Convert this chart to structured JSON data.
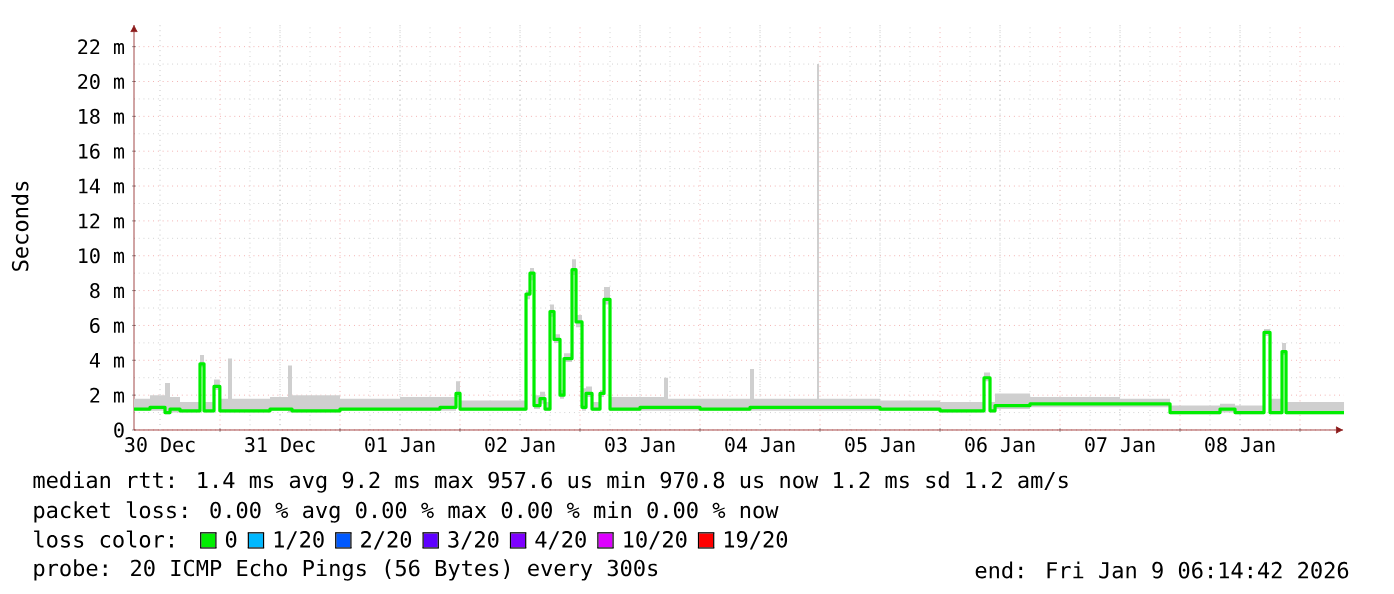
{
  "chart_data": {
    "type": "step",
    "ylabel": "Seconds",
    "legend_title": "loss color:",
    "legend": "bottom",
    "grid": true,
    "xlim": [
      "2025-12-30T06:48",
      "2026-01-09T08:48"
    ],
    "ylim": [
      0,
      23.3
    ],
    "xticks": [
      {
        "value": "2025-12-30T12:00",
        "label": "30 Dec"
      },
      {
        "value": "2025-12-31T00:00",
        "label": null
      },
      {
        "value": "2025-12-31T12:00",
        "label": "31 Dec"
      },
      {
        "value": "2026-01-01T00:00",
        "label": null
      },
      {
        "value": "2026-01-01T12:00",
        "label": "01 Jan"
      },
      {
        "value": "2026-01-02T00:00",
        "label": null
      },
      {
        "value": "2026-01-02T12:00",
        "label": "02 Jan"
      },
      {
        "value": "2026-01-03T00:00",
        "label": null
      },
      {
        "value": "2026-01-03T12:00",
        "label": "03 Jan"
      },
      {
        "value": "2026-01-04T00:00",
        "label": null
      },
      {
        "value": "2026-01-04T12:00",
        "label": "04 Jan"
      },
      {
        "value": "2026-01-05T00:00",
        "label": null
      },
      {
        "value": "2026-01-05T12:00",
        "label": "05 Jan"
      },
      {
        "value": "2026-01-06T00:00",
        "label": null
      },
      {
        "value": "2026-01-06T12:00",
        "label": "06 Jan"
      },
      {
        "value": "2026-01-07T00:00",
        "label": null
      },
      {
        "value": "2026-01-07T12:00",
        "label": "07 Jan"
      },
      {
        "value": "2026-01-08T00:00",
        "label": null
      },
      {
        "value": "2026-01-08T12:00",
        "label": "08 Jan"
      },
      {
        "value": "2026-01-09T00:00",
        "label": null
      }
    ],
    "yticks": [
      0,
      {
        "value": 2,
        "label": "2 m"
      },
      {
        "value": 4,
        "label": "4 m"
      },
      {
        "value": 6,
        "label": "6 m"
      },
      {
        "value": 8,
        "label": "8 m"
      },
      {
        "value": 10,
        "label": "10 m"
      },
      {
        "value": 12,
        "label": "12 m"
      },
      {
        "value": 14,
        "label": "14 m"
      },
      {
        "value": 16,
        "label": "16 m"
      },
      {
        "value": 18,
        "label": "18 m"
      },
      {
        "value": 20,
        "label": "20 m"
      },
      {
        "value": 22,
        "label": "22 m"
      }
    ],
    "x": [
      "2025-12-30T06:48",
      "2025-12-30T10:00",
      "2025-12-30T13:00",
      "2025-12-30T14:00",
      "2025-12-30T16:00",
      "2025-12-30T20:00",
      "2025-12-30T20:48",
      "2025-12-30T22:48",
      "2025-12-30T23:58",
      "2025-12-31T01:36",
      "2025-12-31T02:24",
      "2025-12-31T10:00",
      "2025-12-31T13:36",
      "2025-12-31T14:24",
      "2026-01-01T00:00",
      "2026-01-01T12:00",
      "2026-01-01T20:00",
      "2026-01-01T23:12",
      "2026-01-02T00:00",
      "2026-01-02T13:12",
      "2026-01-02T14:00",
      "2026-01-02T14:48",
      "2026-01-02T16:00",
      "2026-01-02T17:00",
      "2026-01-02T18:00",
      "2026-01-02T18:48",
      "2026-01-02T20:00",
      "2026-01-02T20:48",
      "2026-01-02T22:24",
      "2026-01-02T23:12",
      "2026-01-03T00:24",
      "2026-01-03T01:12",
      "2026-01-03T02:24",
      "2026-01-03T04:00",
      "2026-01-03T04:48",
      "2026-01-03T06:00",
      "2026-01-03T12:00",
      "2026-01-03T16:48",
      "2026-01-03T17:36",
      "2026-01-04T00:00",
      "2026-01-04T10:00",
      "2026-01-04T10:48",
      "2026-01-04T23:24",
      "2026-01-04T23:48",
      "2026-01-05T12:00",
      "2026-01-06T00:00",
      "2026-01-06T08:48",
      "2026-01-06T10:00",
      "2026-01-06T11:00",
      "2026-01-06T18:00",
      "2026-01-07T12:00",
      "2026-01-07T22:00",
      "2026-01-08T08:00",
      "2026-01-08T11:00",
      "2026-01-08T16:48",
      "2026-01-08T18:00",
      "2026-01-08T20:24",
      "2026-01-08T21:12",
      "2026-01-09T08:48"
    ],
    "series": [
      {
        "name": "0",
        "color": "#00ee00",
        "values": [
          1.2,
          1.3,
          1.0,
          1.2,
          1.1,
          3.8,
          1.1,
          2.5,
          1.1,
          1.1,
          1.1,
          1.2,
          1.2,
          1.1,
          1.2,
          1.2,
          1.3,
          2.1,
          1.2,
          7.8,
          9.0,
          1.4,
          1.8,
          1.2,
          6.8,
          5.2,
          2.0,
          4.1,
          9.2,
          6.2,
          1.3,
          2.1,
          1.2,
          2.1,
          7.5,
          1.2,
          1.3,
          1.3,
          1.3,
          1.2,
          1.3,
          1.3,
          1.3,
          1.3,
          1.2,
          1.1,
          3.0,
          1.1,
          1.4,
          1.5,
          1.5,
          1.0,
          1.2,
          1.0,
          5.6,
          1.0,
          4.5,
          1.0,
          1.0
        ],
        "lower": [
          1.1,
          1.1,
          0.9,
          1.0,
          1.0,
          3.6,
          1.0,
          2.3,
          1.0,
          1.0,
          1.0,
          1.1,
          1.0,
          1.0,
          1.1,
          1.1,
          1.1,
          1.9,
          1.1,
          7.5,
          8.6,
          1.2,
          1.5,
          1.1,
          6.5,
          5.0,
          1.8,
          3.9,
          8.9,
          5.9,
          1.1,
          1.9,
          1.1,
          1.9,
          7.2,
          1.1,
          1.1,
          1.1,
          1.1,
          1.1,
          1.1,
          1.1,
          1.1,
          1.1,
          1.1,
          1.0,
          2.8,
          1.0,
          1.2,
          1.3,
          1.3,
          0.9,
          1.0,
          0.9,
          5.4,
          0.9,
          4.3,
          0.9,
          0.9
        ],
        "upper": [
          1.8,
          2.0,
          2.7,
          1.9,
          1.6,
          4.3,
          1.6,
          2.9,
          1.8,
          4.1,
          1.8,
          1.9,
          3.7,
          2.0,
          1.8,
          1.9,
          1.9,
          2.8,
          1.7,
          8.0,
          9.3,
          2.0,
          2.2,
          1.6,
          7.2,
          5.5,
          2.3,
          4.4,
          9.8,
          6.6,
          2.4,
          2.5,
          1.6,
          2.3,
          8.2,
          1.9,
          1.9,
          3.0,
          1.8,
          1.8,
          3.5,
          1.8,
          21.0,
          1.8,
          1.7,
          1.6,
          3.3,
          1.6,
          2.1,
          1.9,
          1.8,
          1.4,
          1.5,
          1.4,
          5.8,
          1.8,
          5.0,
          1.6,
          1.6
        ]
      },
      {
        "name": "1/20",
        "color": "#00b8ff",
        "values": [
          null,
          null,
          null,
          null,
          null,
          null,
          null,
          null,
          null,
          null,
          null,
          null,
          null,
          null,
          null,
          null,
          null,
          null,
          null,
          null,
          null,
          null,
          null,
          null,
          null,
          null,
          null,
          null,
          null,
          null,
          null,
          null,
          null,
          null,
          null,
          null,
          null,
          null,
          null,
          null,
          null,
          null,
          null,
          null,
          null,
          null,
          null,
          null,
          null,
          null,
          null,
          null,
          null,
          null,
          null,
          null,
          null,
          null,
          null
        ]
      },
      {
        "name": "2/20",
        "color": "#0059ff",
        "values": [
          null,
          null,
          null,
          null,
          null,
          null,
          null,
          null,
          null,
          null,
          null,
          null,
          null,
          null,
          null,
          null,
          null,
          null,
          null,
          null,
          null,
          null,
          null,
          null,
          null,
          null,
          null,
          null,
          null,
          null,
          null,
          null,
          null,
          null,
          null,
          null,
          null,
          null,
          null,
          null,
          null,
          null,
          null,
          null,
          null,
          null,
          null,
          null,
          null,
          null,
          null,
          null,
          null,
          null,
          null,
          null,
          null,
          null,
          null
        ]
      },
      {
        "name": "3/20",
        "color": "#5e00ff",
        "values": [
          null,
          null,
          null,
          null,
          null,
          null,
          null,
          null,
          null,
          null,
          null,
          null,
          null,
          null,
          null,
          null,
          null,
          null,
          null,
          null,
          null,
          null,
          null,
          null,
          null,
          null,
          null,
          null,
          null,
          null,
          null,
          null,
          null,
          null,
          null,
          null,
          null,
          null,
          null,
          null,
          null,
          null,
          null,
          null,
          null,
          null,
          null,
          null,
          null,
          null,
          null,
          null,
          null,
          null,
          null,
          null,
          null,
          null,
          null
        ]
      },
      {
        "name": "4/20",
        "color": "#7e00ff",
        "values": [
          null,
          null,
          null,
          null,
          null,
          null,
          null,
          null,
          null,
          null,
          null,
          null,
          null,
          null,
          null,
          null,
          null,
          null,
          null,
          null,
          null,
          null,
          null,
          null,
          null,
          null,
          null,
          null,
          null,
          null,
          null,
          null,
          null,
          null,
          null,
          null,
          null,
          null,
          null,
          null,
          null,
          null,
          null,
          null,
          null,
          null,
          null,
          null,
          null,
          null,
          null,
          null,
          null,
          null,
          null,
          null,
          null,
          null,
          null
        ]
      },
      {
        "name": "10/20",
        "color": "#dd00ff",
        "values": [
          null,
          null,
          null,
          null,
          null,
          null,
          null,
          null,
          null,
          null,
          null,
          null,
          null,
          null,
          null,
          null,
          null,
          null,
          null,
          null,
          null,
          null,
          null,
          null,
          null,
          null,
          null,
          null,
          null,
          null,
          null,
          null,
          null,
          null,
          null,
          null,
          null,
          null,
          null,
          null,
          null,
          null,
          null,
          null,
          null,
          null,
          null,
          null,
          null,
          null,
          null,
          null,
          null,
          null,
          null,
          null,
          null,
          null,
          null
        ]
      },
      {
        "name": "19/20",
        "color": "#ff0000",
        "values": [
          null,
          null,
          null,
          null,
          null,
          null,
          null,
          null,
          null,
          null,
          null,
          null,
          null,
          null,
          null,
          null,
          null,
          null,
          null,
          null,
          null,
          null,
          null,
          null,
          null,
          null,
          null,
          null,
          null,
          null,
          null,
          null,
          null,
          null,
          null,
          null,
          null,
          null,
          null,
          null,
          null,
          null,
          null,
          null,
          null,
          null,
          null,
          null,
          null,
          null,
          null,
          null,
          null,
          null,
          null,
          null,
          null,
          null,
          null
        ]
      }
    ],
    "annotations": [
      "median rtt:  1.4 ms avg  9.2 ms max  957.6 us min  970.8 us now  1.2 ms sd  1.2   am/s",
      "packet loss: 0.00 % avg  0.00 % max  0.00 % min  0.00 % now",
      "probe:       20 ICMP Echo Pings (56 Bytes) every 300s",
      "end: Fri Jan  9 06:14:42 2026"
    ]
  }
}
